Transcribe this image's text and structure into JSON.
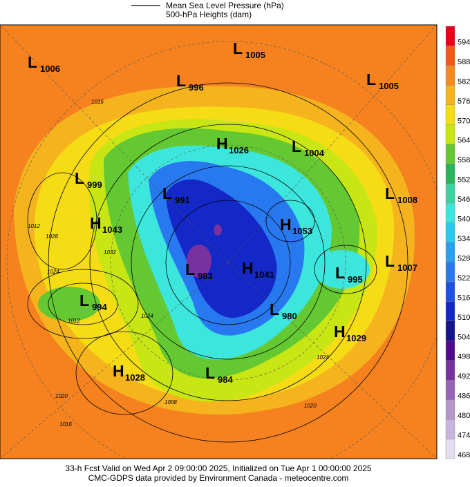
{
  "legend": {
    "line1": "Mean Sea Level Pressure (hPa)",
    "line2": "500-hPa Heights (dam)"
  },
  "colorbar": {
    "ticks": [
      594,
      588,
      582,
      576,
      570,
      564,
      558,
      552,
      546,
      540,
      534,
      528,
      522,
      516,
      510,
      504,
      498,
      492,
      486,
      480,
      474,
      468
    ],
    "colors": [
      "#e8001a",
      "#f05a12",
      "#f58a1e",
      "#f5b41e",
      "#f5dc14",
      "#c8e614",
      "#64c832",
      "#28b45a",
      "#3cd2a0",
      "#3ce6dc",
      "#28c8f0",
      "#28a0f0",
      "#2878f0",
      "#1e50e6",
      "#1428c8",
      "#14148c",
      "#500a8c",
      "#7832a0",
      "#9664b4",
      "#b496c8",
      "#c8b4dc",
      "#e6dcf0"
    ]
  },
  "centers": [
    {
      "type": "L",
      "value": 1005
    },
    {
      "type": "L",
      "value": 1006
    },
    {
      "type": "L",
      "value": 996
    },
    {
      "type": "L",
      "value": 1005
    },
    {
      "type": "H",
      "value": 1026
    },
    {
      "type": "L",
      "value": 1004
    },
    {
      "type": "L",
      "value": 999
    },
    {
      "type": "L",
      "value": 1008
    },
    {
      "type": "H",
      "value": 1043
    },
    {
      "type": "L",
      "value": 991
    },
    {
      "type": "H",
      "value": 1053
    },
    {
      "type": "L",
      "value": 1007
    },
    {
      "type": "L",
      "value": 995
    },
    {
      "type": "L",
      "value": 983
    },
    {
      "type": "H",
      "value": 1041
    },
    {
      "type": "L",
      "value": 980
    },
    {
      "type": "H",
      "value": 1029
    },
    {
      "type": "L",
      "value": 994
    },
    {
      "type": "H",
      "value": 1028
    },
    {
      "type": "L",
      "value": 984
    }
  ],
  "isobar_labels": [
    1016,
    1012,
    1028,
    1032,
    1024,
    1012,
    1024,
    1020,
    1016,
    1008,
    1024,
    1020
  ],
  "footer": {
    "line1": "33-h Fcst Valid on Wed Apr  2 09:00:00 2025, Initialized on Tue Apr  1 00:00:00 2025",
    "line2": "CMC-GDPS data provided by Environment Canada - meteocentre.com"
  }
}
